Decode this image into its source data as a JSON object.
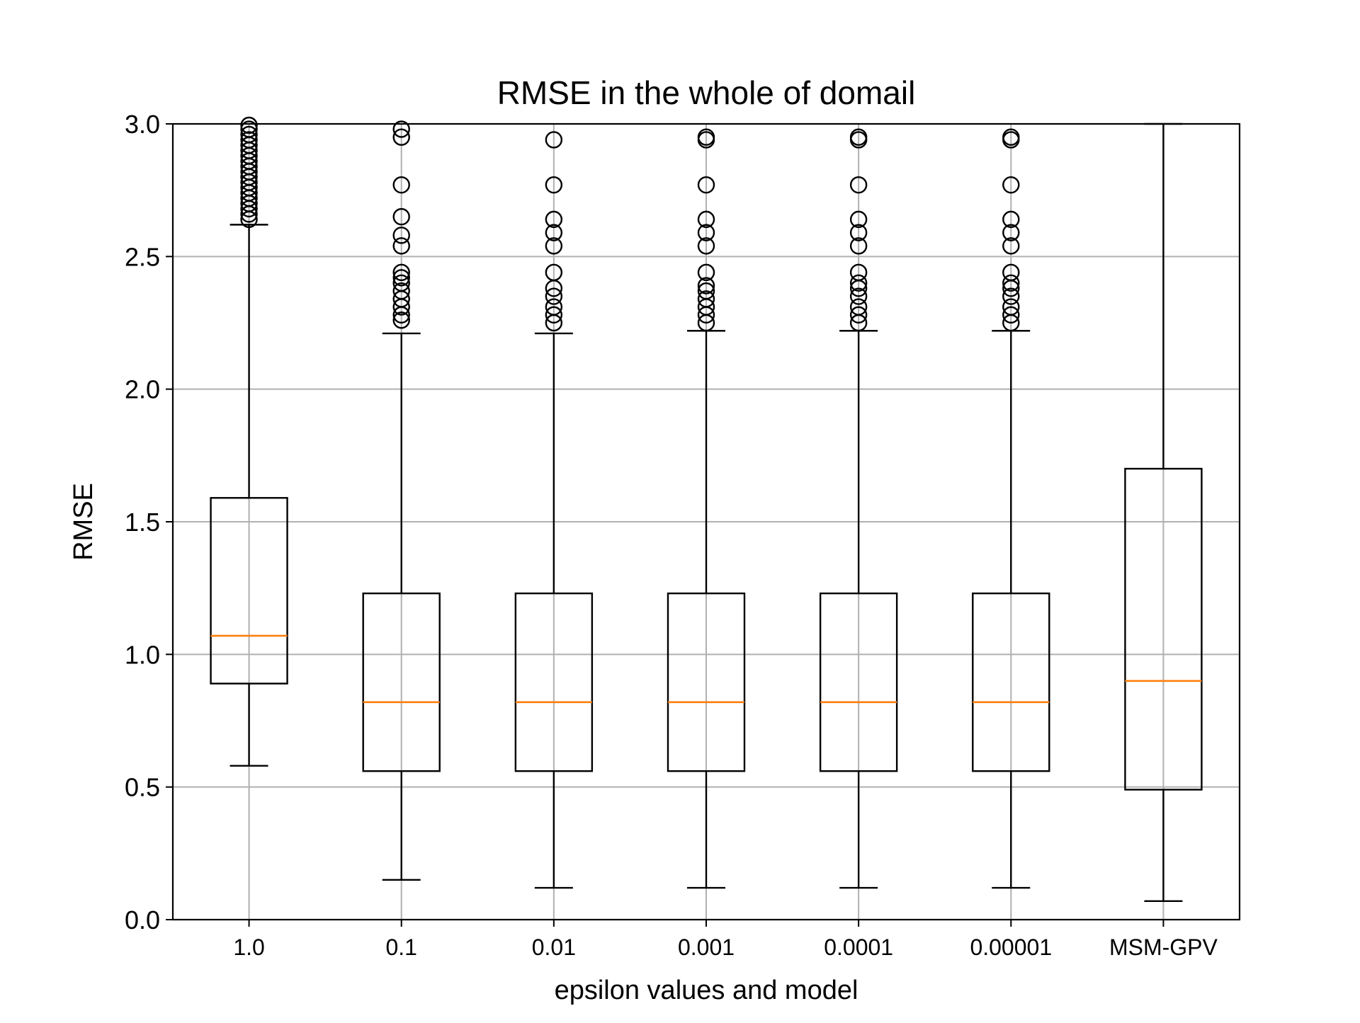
{
  "chart_data": {
    "type": "box",
    "title": "RMSE in the whole of domail",
    "xlabel": "epsilon values and model",
    "ylabel": "RMSE",
    "ylim": [
      0.0,
      3.0
    ],
    "yticks": [
      0.0,
      0.5,
      1.0,
      1.5,
      2.0,
      2.5,
      3.0
    ],
    "ytick_labels": [
      "0.0",
      "0.5",
      "1.0",
      "1.5",
      "2.0",
      "2.5",
      "3.0"
    ],
    "grid": true,
    "categories": [
      "1.0",
      "0.1",
      "0.01",
      "0.001",
      "0.0001",
      "0.00001",
      "MSM-GPV"
    ],
    "boxes": [
      {
        "whisker_low": 0.58,
        "q1": 0.89,
        "median": 1.07,
        "q3": 1.59,
        "whisker_high": 2.62,
        "outliers": [
          2.64,
          2.66,
          2.68,
          2.7,
          2.72,
          2.74,
          2.76,
          2.78,
          2.8,
          2.82,
          2.84,
          2.86,
          2.88,
          2.9,
          2.92,
          2.94,
          2.96,
          2.98,
          3.0
        ]
      },
      {
        "whisker_low": 0.15,
        "q1": 0.56,
        "median": 0.82,
        "q3": 1.23,
        "whisker_high": 2.21,
        "outliers": [
          2.26,
          2.28,
          2.31,
          2.34,
          2.37,
          2.4,
          2.42,
          2.44,
          2.54,
          2.58,
          2.65,
          2.77,
          2.95,
          2.98
        ]
      },
      {
        "whisker_low": 0.12,
        "q1": 0.56,
        "median": 0.82,
        "q3": 1.23,
        "whisker_high": 2.21,
        "outliers": [
          2.25,
          2.28,
          2.31,
          2.35,
          2.38,
          2.44,
          2.54,
          2.59,
          2.64,
          2.77,
          2.94
        ]
      },
      {
        "whisker_low": 0.12,
        "q1": 0.56,
        "median": 0.82,
        "q3": 1.23,
        "whisker_high": 2.22,
        "outliers": [
          2.25,
          2.28,
          2.31,
          2.34,
          2.37,
          2.39,
          2.44,
          2.54,
          2.59,
          2.64,
          2.77,
          2.94,
          2.95
        ]
      },
      {
        "whisker_low": 0.12,
        "q1": 0.56,
        "median": 0.82,
        "q3": 1.23,
        "whisker_high": 2.22,
        "outliers": [
          2.25,
          2.28,
          2.31,
          2.35,
          2.38,
          2.4,
          2.44,
          2.54,
          2.59,
          2.64,
          2.77,
          2.94,
          2.95
        ]
      },
      {
        "whisker_low": 0.12,
        "q1": 0.56,
        "median": 0.82,
        "q3": 1.23,
        "whisker_high": 2.22,
        "outliers": [
          2.25,
          2.28,
          2.31,
          2.35,
          2.38,
          2.4,
          2.44,
          2.54,
          2.59,
          2.64,
          2.77,
          2.94,
          2.95
        ]
      },
      {
        "whisker_low": 0.07,
        "q1": 0.49,
        "median": 0.9,
        "q3": 1.7,
        "whisker_high": 3.0,
        "outliers": []
      }
    ],
    "colors": {
      "box": "#000000",
      "median": "#ff7f0e",
      "grid": "#b0b0b0"
    }
  }
}
